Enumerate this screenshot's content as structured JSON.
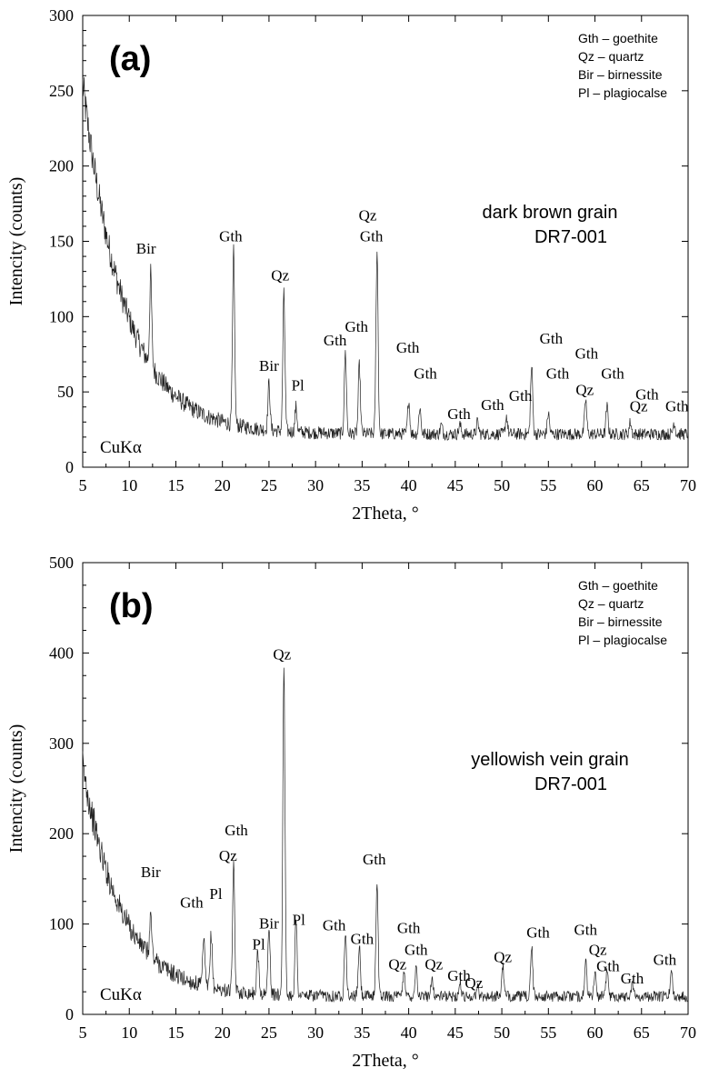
{
  "chart_data": [
    {
      "panel_id": "a",
      "type": "line",
      "panel_label": "(a)",
      "title": "dark brown grain",
      "subtitle": "DR7-001",
      "xlabel": "2Theta, °",
      "ylabel": "Intencity (counts)",
      "xlim": [
        5,
        70
      ],
      "ylim": [
        0,
        300
      ],
      "xticks": [
        "5",
        "10",
        "15",
        "20",
        "25",
        "30",
        "35",
        "40",
        "45",
        "50",
        "55",
        "60",
        "65",
        "70"
      ],
      "yticks": [
        "0",
        "50",
        "100",
        "150",
        "200",
        "250",
        "300"
      ],
      "radiation": "CuKα",
      "legend": [
        "Gth – goethite",
        "Qz – quartz",
        "Bir – birnessite",
        "Pl – plagiocalse"
      ],
      "legend_position": "top-right",
      "background": {
        "base": 22,
        "amplitude": 232,
        "decay": 4.5,
        "noise": 4
      },
      "peaks": [
        {
          "x": 12.3,
          "y": 128
        },
        {
          "x": 21.2,
          "y": 143
        },
        {
          "x": 25.0,
          "y": 56
        },
        {
          "x": 26.6,
          "y": 115
        },
        {
          "x": 27.9,
          "y": 40
        },
        {
          "x": 33.2,
          "y": 76
        },
        {
          "x": 34.7,
          "y": 68
        },
        {
          "x": 36.6,
          "y": 145
        },
        {
          "x": 40.0,
          "y": 45
        },
        {
          "x": 41.2,
          "y": 40
        },
        {
          "x": 43.5,
          "y": 28
        },
        {
          "x": 45.5,
          "y": 28
        },
        {
          "x": 47.4,
          "y": 30
        },
        {
          "x": 50.5,
          "y": 34
        },
        {
          "x": 53.2,
          "y": 67
        },
        {
          "x": 55.0,
          "y": 36
        },
        {
          "x": 59.0,
          "y": 45
        },
        {
          "x": 61.3,
          "y": 40
        },
        {
          "x": 63.8,
          "y": 30
        },
        {
          "x": 68.5,
          "y": 30
        }
      ],
      "annotations": [
        {
          "text": "Bir",
          "x": 11.8,
          "y": 142
        },
        {
          "text": "Gth",
          "x": 20.9,
          "y": 150
        },
        {
          "text": "Qz",
          "x": 26.2,
          "y": 124
        },
        {
          "text": "Bir",
          "x": 25.0,
          "y": 64
        },
        {
          "text": "Pl",
          "x": 28.1,
          "y": 51
        },
        {
          "text": "Gth",
          "x": 32.1,
          "y": 81
        },
        {
          "text": "Gth",
          "x": 34.4,
          "y": 90
        },
        {
          "text": "Qz",
          "x": 35.6,
          "y": 164
        },
        {
          "text": "Gth",
          "x": 36.0,
          "y": 150
        },
        {
          "text": "Gth",
          "x": 39.9,
          "y": 76
        },
        {
          "text": "Gth",
          "x": 41.8,
          "y": 59
        },
        {
          "text": "Gth",
          "x": 45.4,
          "y": 32
        },
        {
          "text": "Gth",
          "x": 49.0,
          "y": 38
        },
        {
          "text": "Gth",
          "x": 52.0,
          "y": 44
        },
        {
          "text": "Gth",
          "x": 55.3,
          "y": 82
        },
        {
          "text": "Gth",
          "x": 56.0,
          "y": 59
        },
        {
          "text": "Gth",
          "x": 59.1,
          "y": 72
        },
        {
          "text": "Gth",
          "x": 61.9,
          "y": 59
        },
        {
          "text": "Qz",
          "x": 58.9,
          "y": 48
        },
        {
          "text": "Qz",
          "x": 64.7,
          "y": 37
        },
        {
          "text": "Gth",
          "x": 65.6,
          "y": 45
        },
        {
          "text": "Gth",
          "x": 68.8,
          "y": 37
        }
      ]
    },
    {
      "panel_id": "b",
      "type": "line",
      "panel_label": "(b)",
      "title": "yellowish vein grain",
      "subtitle": "DR7-001",
      "xlabel": "2Theta, °",
      "ylabel": "Intencity (counts)",
      "xlim": [
        5,
        70
      ],
      "ylim": [
        0,
        500
      ],
      "xticks": [
        "5",
        "10",
        "15",
        "20",
        "25",
        "30",
        "35",
        "40",
        "45",
        "50",
        "55",
        "60",
        "65",
        "70"
      ],
      "yticks": [
        "0",
        "100",
        "200",
        "300",
        "400",
        "500"
      ],
      "radiation": "CuKα",
      "legend": [
        "Gth – goethite",
        "Qz – quartz",
        "Bir – birnessite",
        "Pl – plagiocalse"
      ],
      "legend_position": "top-right",
      "background": {
        "base": 20,
        "amplitude": 255,
        "decay": 4.2,
        "noise": 6
      },
      "peaks": [
        {
          "x": 12.3,
          "y": 110
        },
        {
          "x": 18.0,
          "y": 85
        },
        {
          "x": 18.8,
          "y": 90
        },
        {
          "x": 21.2,
          "y": 163
        },
        {
          "x": 23.8,
          "y": 70
        },
        {
          "x": 25.0,
          "y": 100
        },
        {
          "x": 26.6,
          "y": 390
        },
        {
          "x": 27.9,
          "y": 105
        },
        {
          "x": 33.2,
          "y": 92
        },
        {
          "x": 34.7,
          "y": 76
        },
        {
          "x": 36.6,
          "y": 150
        },
        {
          "x": 39.5,
          "y": 50
        },
        {
          "x": 40.8,
          "y": 55
        },
        {
          "x": 42.5,
          "y": 42
        },
        {
          "x": 45.5,
          "y": 35
        },
        {
          "x": 47.4,
          "y": 30
        },
        {
          "x": 50.1,
          "y": 55
        },
        {
          "x": 53.2,
          "y": 75
        },
        {
          "x": 59.0,
          "y": 60
        },
        {
          "x": 60.0,
          "y": 45
        },
        {
          "x": 61.3,
          "y": 50
        },
        {
          "x": 64.0,
          "y": 35
        },
        {
          "x": 68.2,
          "y": 50
        }
      ],
      "annotations": [
        {
          "text": "Bir",
          "x": 12.3,
          "y": 152
        },
        {
          "text": "Gth",
          "x": 21.5,
          "y": 198
        },
        {
          "text": "Qz",
          "x": 20.6,
          "y": 170
        },
        {
          "text": "Pl",
          "x": 19.3,
          "y": 128
        },
        {
          "text": "Gth",
          "x": 16.7,
          "y": 118
        },
        {
          "text": "Pl",
          "x": 23.9,
          "y": 72
        },
        {
          "text": "Bir",
          "x": 25.0,
          "y": 95
        },
        {
          "text": "Qz",
          "x": 26.4,
          "y": 393
        },
        {
          "text": "Pl",
          "x": 28.2,
          "y": 99
        },
        {
          "text": "Gth",
          "x": 32.0,
          "y": 93
        },
        {
          "text": "Gth",
          "x": 35.0,
          "y": 78
        },
        {
          "text": "Gth",
          "x": 36.3,
          "y": 166
        },
        {
          "text": "Gth",
          "x": 40.0,
          "y": 90
        },
        {
          "text": "Gth",
          "x": 40.8,
          "y": 66
        },
        {
          "text": "Qz",
          "x": 38.8,
          "y": 50
        },
        {
          "text": "Qz",
          "x": 42.7,
          "y": 50
        },
        {
          "text": "Gth",
          "x": 45.4,
          "y": 37
        },
        {
          "text": "Qz",
          "x": 47.0,
          "y": 29
        },
        {
          "text": "Qz",
          "x": 50.1,
          "y": 58
        },
        {
          "text": "Gth",
          "x": 53.9,
          "y": 85
        },
        {
          "text": "Gth",
          "x": 59.0,
          "y": 88
        },
        {
          "text": "Qz",
          "x": 60.3,
          "y": 66
        },
        {
          "text": "Gth",
          "x": 61.4,
          "y": 48
        },
        {
          "text": "Gth",
          "x": 64.0,
          "y": 34
        },
        {
          "text": "Gth",
          "x": 67.5,
          "y": 55
        }
      ]
    }
  ]
}
